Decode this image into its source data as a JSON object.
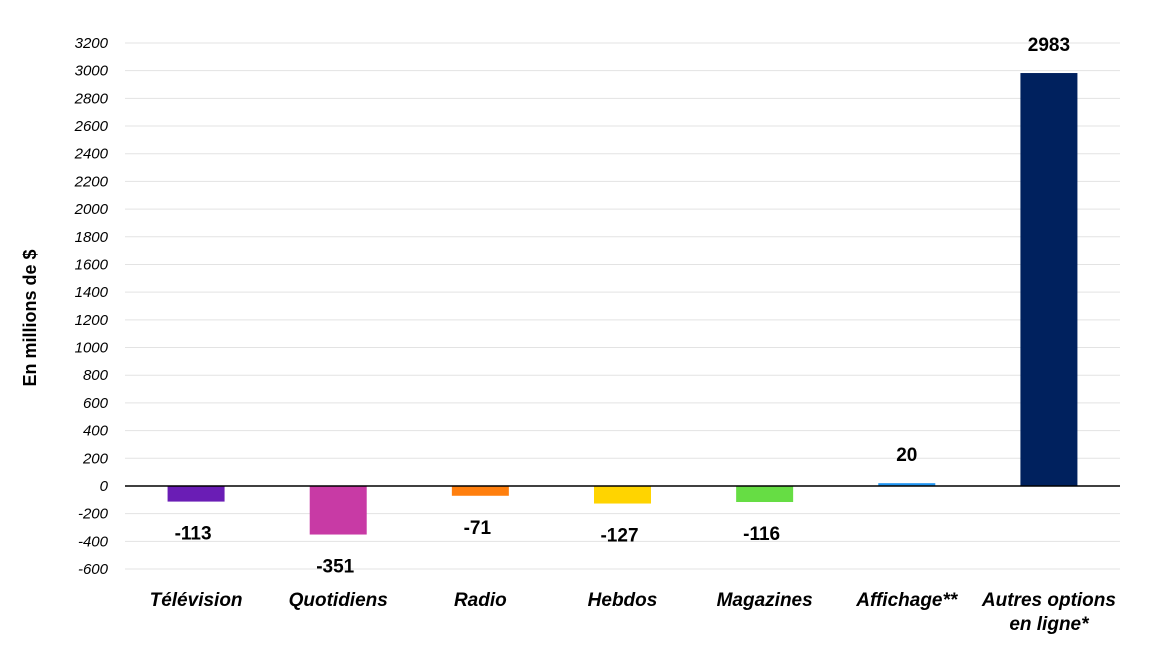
{
  "chart_data": {
    "type": "bar",
    "ylabel": "En millions de $",
    "xlabel": "",
    "title": "",
    "ylim": [
      -600,
      3200
    ],
    "ytick_step": 200,
    "grid": true,
    "categories": [
      [
        "Télévision"
      ],
      [
        "Quotidiens"
      ],
      [
        "Radio"
      ],
      [
        "Hebdos"
      ],
      [
        "Magazines"
      ],
      [
        "Affichage**"
      ],
      [
        "Autres options",
        "en ligne*"
      ]
    ],
    "values": [
      -113,
      -351,
      -71,
      -127,
      -116,
      20,
      2983
    ],
    "colors": [
      "#6a1db5",
      "#c83aa5",
      "#ff7f0e",
      "#ffd400",
      "#66dd44",
      "#2196f3",
      "#00215e"
    ]
  }
}
